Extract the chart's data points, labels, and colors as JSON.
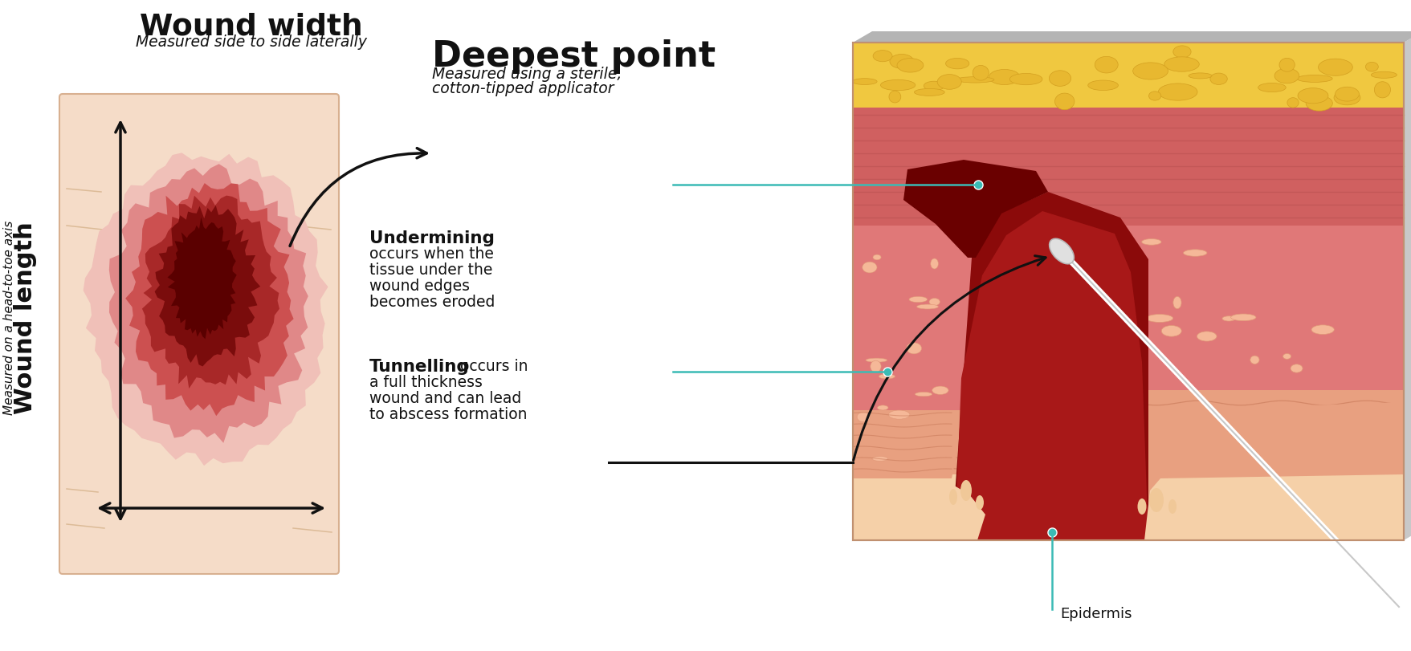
{
  "bg_color": "#ffffff",
  "skin_bg": "#f5dcc8",
  "text_color": "#111111",
  "teal": "#3bbbb5",
  "arrow_color": "#111111",
  "title_wound_width": "Wound width",
  "subtitle_wound_width": "Measured side to side laterally",
  "title_wound_length": "Wound length",
  "subtitle_wound_length": "Measured on a head-to-toe axis",
  "title_deepest": "Deepest point",
  "subtitle_deepest": "Measured using a sterile,\ncotton-tipped applicator",
  "label_undermining_bold": "Undermining",
  "label_undermining_text": "occurs when the\ntissue under the\nwound edges\nbecomes eroded",
  "label_tunnelling_bold": "Tunnelling",
  "label_tunnelling_text": " occurs in\na full thickness\nwound and can lead\nto abscess formation",
  "label_epidermis": "Epidermis",
  "wound_halo": "#f0c0b8",
  "wound_outer": "#e08888",
  "wound_mid1": "#cc5050",
  "wound_mid2": "#a82828",
  "wound_core": "#7a0c0c",
  "wound_darkest": "#5a0000",
  "cs_epi_color": "#f5d0a8",
  "cs_derm_color": "#e8a080",
  "cs_sub_color": "#e07878",
  "cs_deep_color": "#d06060",
  "cs_fat_color": "#f0c840",
  "cs_wound_dark": "#8b0a0a",
  "cs_wound_mid": "#a81818",
  "cs_tunnel": "#6a0000",
  "cs_bubble_fill": "#f5b898",
  "cs_bubble_edge": "#e09878",
  "fat_blob_fill": "#e8b830",
  "fat_blob_edge": "#d4a020"
}
